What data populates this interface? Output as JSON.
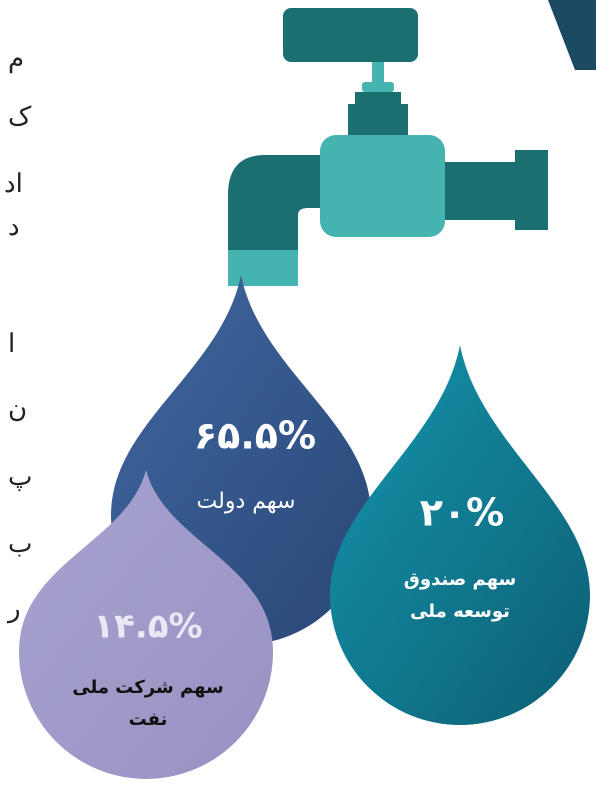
{
  "side_text": [
    "م",
    "ک",
    "اد",
    "د",
    "ا",
    "ن",
    "پ",
    "ب",
    "ر"
  ],
  "drops": [
    {
      "value_label": "۶۵.۵%",
      "label_lines": [
        "سهم دولت"
      ]
    },
    {
      "value_label": "۲۰%",
      "label_lines": [
        "سهم صندوق",
        "توسعه ملی"
      ]
    },
    {
      "value_label": "۱۴.۵%",
      "label_lines": [
        "سهم شرکت ملی",
        "نفت"
      ]
    }
  ]
}
